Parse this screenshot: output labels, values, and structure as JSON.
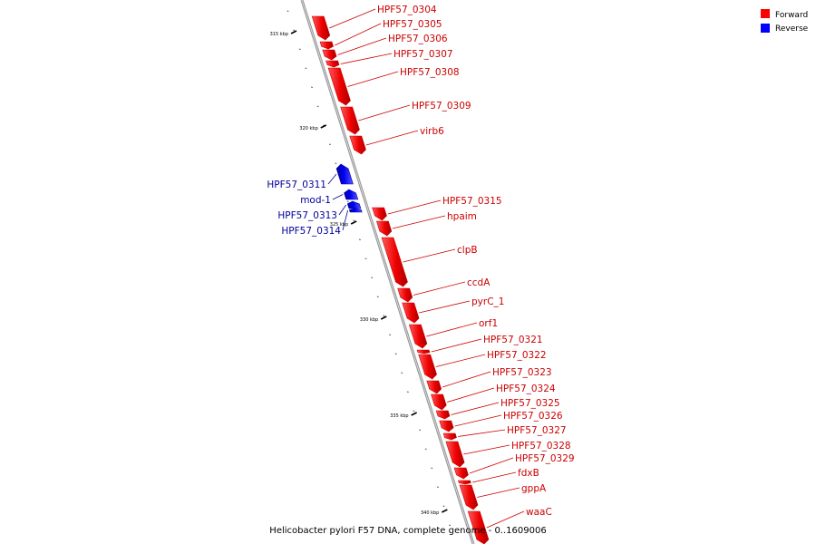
{
  "caption": "Helicobacter pylori F57 DNA, complete genome - 0..1609006",
  "legend": [
    {
      "label": "Forward",
      "color": "#ff0000"
    },
    {
      "label": "Reverse",
      "color": "#0000ff"
    }
  ],
  "colors": {
    "forward": "#ff0000",
    "reverse": "#0000ff",
    "forward_label": "#cc0000",
    "reverse_label": "#000099",
    "backbone": "#999999"
  },
  "tick_labels": [
    "315 kbp",
    "320 kbp",
    "325 kbp",
    "330 kbp",
    "335 kbp",
    "340 kbp"
  ],
  "genes": [
    {
      "name": "HPF57_0304",
      "strand": "forward"
    },
    {
      "name": "HPF57_0305",
      "strand": "forward"
    },
    {
      "name": "HPF57_0306",
      "strand": "forward"
    },
    {
      "name": "HPF57_0307",
      "strand": "forward"
    },
    {
      "name": "HPF57_0308",
      "strand": "forward"
    },
    {
      "name": "HPF57_0309",
      "strand": "forward"
    },
    {
      "name": "virb6",
      "strand": "forward"
    },
    {
      "name": "HPF57_0311",
      "strand": "reverse"
    },
    {
      "name": "mod-1",
      "strand": "reverse"
    },
    {
      "name": "HPF57_0313",
      "strand": "reverse"
    },
    {
      "name": "HPF57_0314",
      "strand": "reverse"
    },
    {
      "name": "HPF57_0315",
      "strand": "forward"
    },
    {
      "name": "hpaim",
      "strand": "forward"
    },
    {
      "name": "clpB",
      "strand": "forward"
    },
    {
      "name": "ccdA",
      "strand": "forward"
    },
    {
      "name": "pyrC_1",
      "strand": "forward"
    },
    {
      "name": "orf1",
      "strand": "forward"
    },
    {
      "name": "HPF57_0321",
      "strand": "forward"
    },
    {
      "name": "HPF57_0322",
      "strand": "forward"
    },
    {
      "name": "HPF57_0323",
      "strand": "forward"
    },
    {
      "name": "HPF57_0324",
      "strand": "forward"
    },
    {
      "name": "HPF57_0325",
      "strand": "forward"
    },
    {
      "name": "HPF57_0326",
      "strand": "forward"
    },
    {
      "name": "HPF57_0327",
      "strand": "forward"
    },
    {
      "name": "HPF57_0328",
      "strand": "forward"
    },
    {
      "name": "HPF57_0329",
      "strand": "forward"
    },
    {
      "name": "fdxB",
      "strand": "forward"
    },
    {
      "name": "gppA",
      "strand": "forward"
    },
    {
      "name": "waaC",
      "strand": "forward"
    }
  ]
}
